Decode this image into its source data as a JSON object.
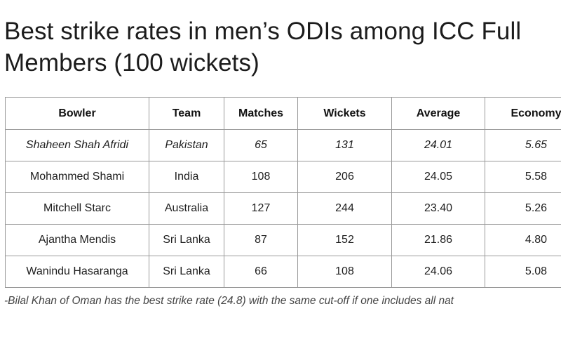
{
  "title_line1": "Best strike rates in men’s ODIs among ICC Full",
  "title_line2": "Members (100 wickets)",
  "table": {
    "headers": [
      "Bowler",
      "Team",
      "Matches",
      "Wickets",
      "Average",
      "Economy"
    ],
    "rows": [
      [
        "Shaheen Shah Afridi",
        "Pakistan",
        "65",
        "131",
        "24.01",
        "5.65"
      ],
      [
        "Mohammed Shami",
        "India",
        "108",
        "206",
        "24.05",
        "5.58"
      ],
      [
        "Mitchell Starc",
        "Australia",
        "127",
        "244",
        "23.40",
        "5.26"
      ],
      [
        "Ajantha Mendis",
        "Sri Lanka",
        "87",
        "152",
        "21.86",
        "4.80"
      ],
      [
        "Wanindu Hasaranga",
        "Sri Lanka",
        "66",
        "108",
        "24.06",
        "5.08"
      ]
    ]
  },
  "footnote": "-Bilal Khan of Oman has the best strike rate (24.8) with the same cut-off if one includes all nat"
}
